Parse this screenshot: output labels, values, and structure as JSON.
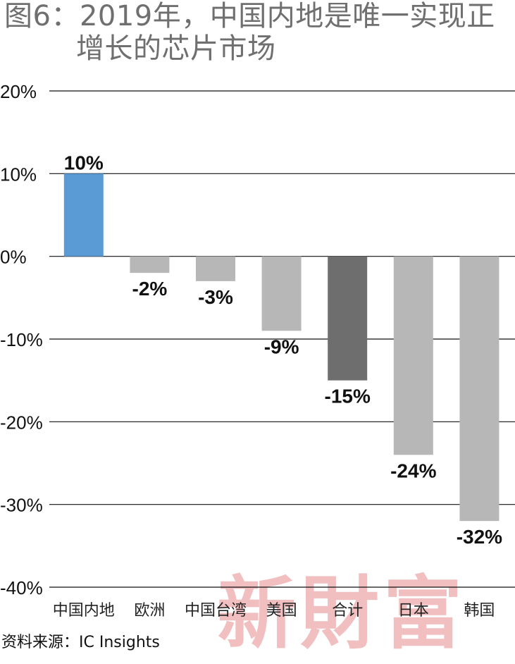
{
  "title": {
    "line1": "图6：2019年，中国内地是唯一实现正",
    "line2": "增长的芯片市场"
  },
  "source": "资料来源：IC Insights",
  "watermark": "新財富",
  "colors": {
    "highlight": "#5b9bd5",
    "total": "#6e6e6e",
    "default": "#b7b7b7",
    "grid": "#111111"
  },
  "chart_data": {
    "type": "bar",
    "categories": [
      "中国内地",
      "欧洲",
      "中国台湾",
      "美国",
      "合计",
      "日本",
      "韩国"
    ],
    "values": [
      10,
      -2,
      -3,
      -9,
      -15,
      -24,
      -32
    ],
    "data_labels": [
      "10%",
      "-2%",
      "-3%",
      "-9%",
      "-15%",
      "-24%",
      "-32%"
    ],
    "bar_color_keys": [
      "highlight",
      "default",
      "default",
      "default",
      "total",
      "default",
      "default"
    ],
    "ylim": [
      -40,
      20
    ],
    "yticks": [
      20,
      10,
      0,
      -10,
      -20,
      -30,
      -40
    ],
    "ytick_labels": [
      "20%",
      "10%",
      "0%",
      "-10%",
      "-20%",
      "-30%",
      "-40%"
    ],
    "grid": true
  }
}
